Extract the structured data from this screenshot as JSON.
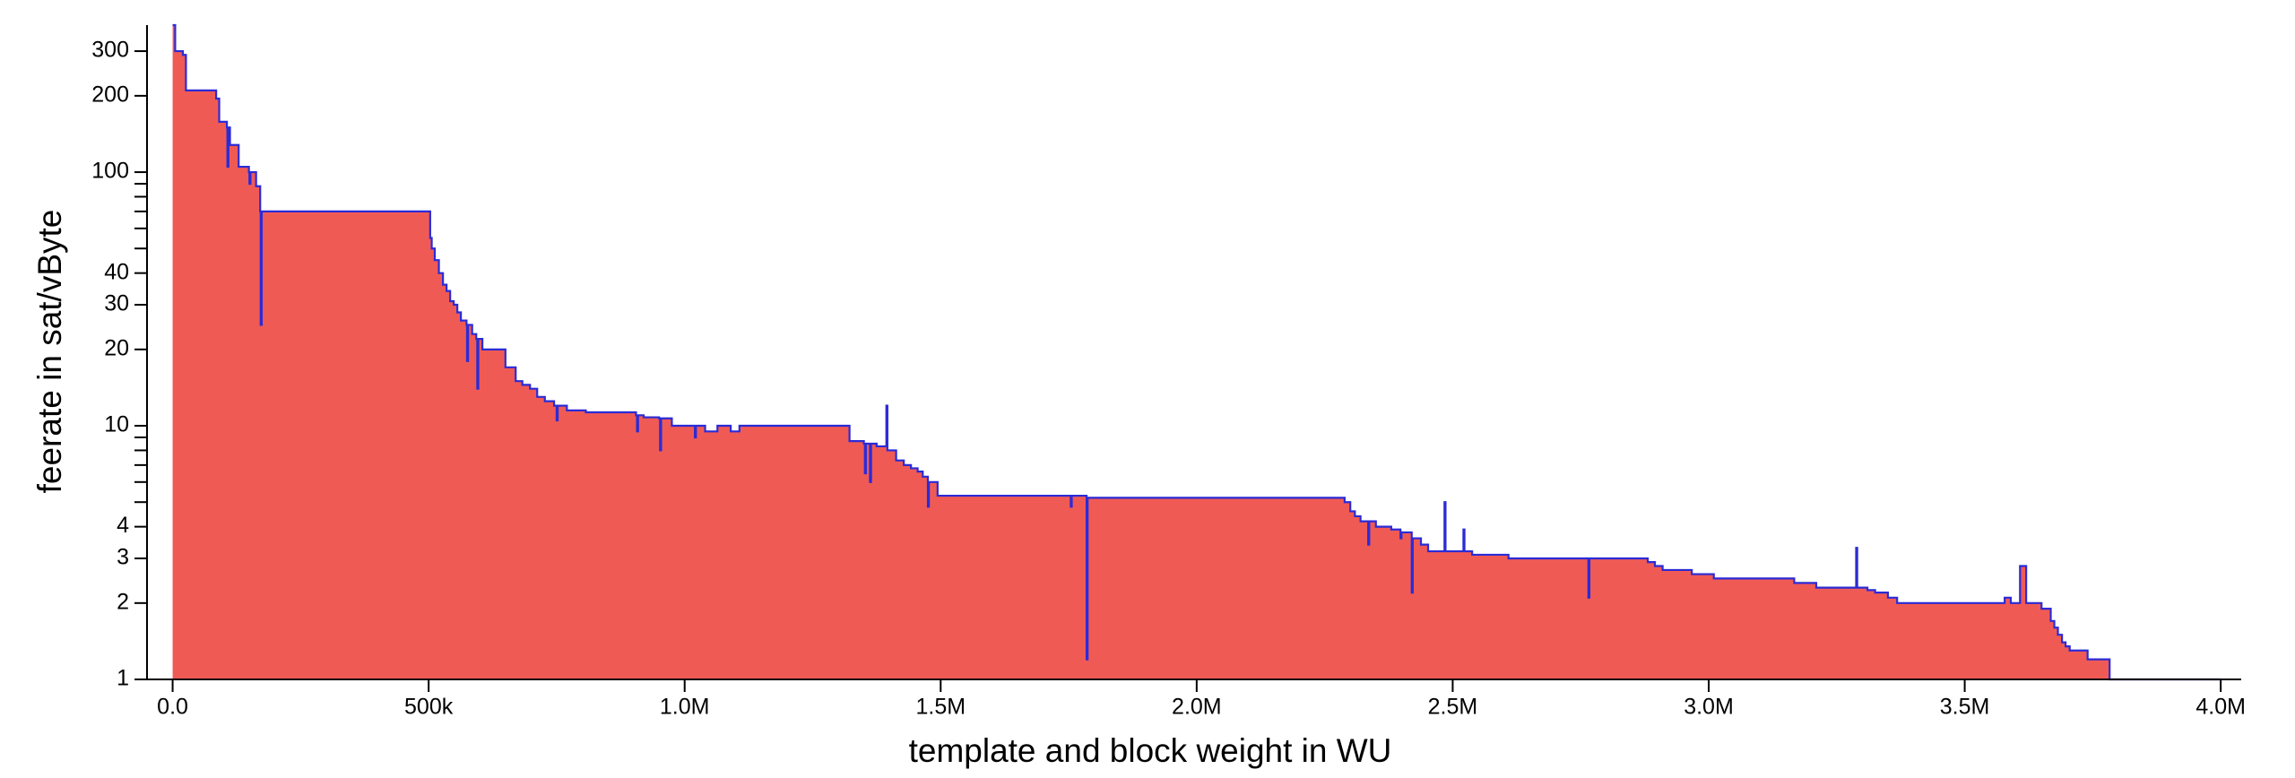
{
  "chart_data": {
    "type": "step-area",
    "x_label": "template and block weight in WU",
    "y_label": "feerate in sat/vByte",
    "log_y": true,
    "fill_color": "#f05a55",
    "line_color": "#2b2bd6",
    "xlim": [
      -50000,
      4040000
    ],
    "ylim": [
      1,
      380
    ],
    "xticks": [
      {
        "value": 0,
        "label": "0.0"
      },
      {
        "value": 500000,
        "label": "500k"
      },
      {
        "value": 1000000,
        "label": "1.0M"
      },
      {
        "value": 1500000,
        "label": "1.5M"
      },
      {
        "value": 2000000,
        "label": "2.0M"
      },
      {
        "value": 2500000,
        "label": "2.5M"
      },
      {
        "value": 3000000,
        "label": "3.0M"
      },
      {
        "value": 3500000,
        "label": "3.5M"
      },
      {
        "value": 4000000,
        "label": "4.0M"
      }
    ],
    "yticks": [
      1,
      2,
      3,
      4,
      10,
      20,
      30,
      40,
      100,
      200,
      300
    ],
    "yminor_ticks": [
      5,
      6,
      7,
      8,
      9,
      50,
      60,
      70,
      80,
      90
    ],
    "x": [
      0,
      5000,
      20000,
      26000,
      85000,
      91000,
      106000,
      107000,
      109000,
      112000,
      129000,
      149000,
      150000,
      152000,
      163000,
      171000,
      172000,
      174000,
      498000,
      503000,
      506000,
      512000,
      520000,
      528000,
      535000,
      542000,
      549000,
      556000,
      563000,
      574000,
      575000,
      577000,
      585000,
      593000,
      595000,
      597000,
      605000,
      650000,
      670000,
      683000,
      698000,
      712000,
      727000,
      745000,
      750000,
      752000,
      770000,
      807000,
      905000,
      907000,
      909000,
      920000,
      950000,
      952000,
      954000,
      975000,
      1020000,
      1022000,
      1040000,
      1064000,
      1090000,
      1107000,
      1322000,
      1350000,
      1352000,
      1354000,
      1362000,
      1364000,
      1375000,
      1394000,
      1396000,
      1413000,
      1428000,
      1442000,
      1455000,
      1465000,
      1475000,
      1477000,
      1494000,
      1754000,
      1756000,
      1785000,
      1787000,
      2289000,
      2300000,
      2309000,
      2320000,
      2335000,
      2337000,
      2350000,
      2380000,
      2398000,
      2400000,
      2420000,
      2422000,
      2438000,
      2452000,
      2484000,
      2486000,
      2521000,
      2523000,
      2538000,
      2609000,
      2765000,
      2767000,
      2881000,
      2895000,
      2910000,
      2967000,
      3010000,
      3167000,
      3210000,
      3288000,
      3290000,
      3310000,
      3325000,
      3350000,
      3368000,
      3578000,
      3590000,
      3608000,
      3620000,
      3650000,
      3668000,
      3675000,
      3682000,
      3690000,
      3697000,
      3705000,
      3740000,
      3783000,
      4000000
    ],
    "values": [
      380,
      300,
      290,
      210,
      195,
      158,
      150,
      105,
      150,
      128,
      105,
      100,
      90,
      100,
      88,
      70,
      25,
      70,
      70,
      55,
      50,
      45,
      40,
      36,
      34,
      31,
      30,
      28,
      26,
      25,
      18,
      25,
      23,
      22,
      14,
      22,
      20,
      17,
      15,
      14.5,
      14,
      13,
      12.5,
      12,
      10.5,
      12,
      11.5,
      11.3,
      11,
      9.5,
      11,
      10.8,
      10.7,
      8,
      10.7,
      10,
      9,
      10,
      9.5,
      10,
      9.5,
      10,
      8.7,
      8.5,
      6.5,
      8.5,
      6,
      8.5,
      8.3,
      12,
      8,
      7.3,
      7,
      6.8,
      6.6,
      6.3,
      4.8,
      6,
      5.3,
      4.8,
      5.3,
      1.2,
      5.2,
      5,
      4.6,
      4.4,
      4.2,
      3.4,
      4.2,
      4,
      3.9,
      3.6,
      3.8,
      2.2,
      3.6,
      3.4,
      3.2,
      5,
      3.2,
      3.9,
      3.2,
      3.1,
      3,
      2.1,
      3,
      2.9,
      2.8,
      2.7,
      2.6,
      2.5,
      2.4,
      2.3,
      3.3,
      2.3,
      2.25,
      2.2,
      2.1,
      2.0,
      2.1,
      2.0,
      2.8,
      2.0,
      1.9,
      1.7,
      1.6,
      1.5,
      1.4,
      1.35,
      1.3,
      1.2,
      1,
      1
    ]
  }
}
